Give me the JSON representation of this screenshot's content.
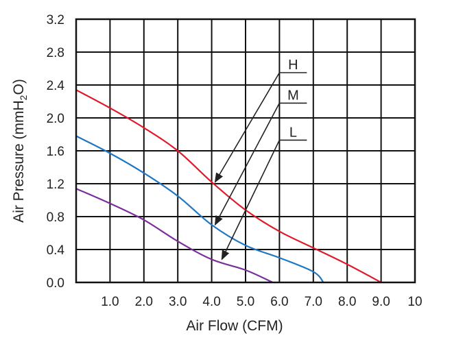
{
  "chart_data": {
    "type": "line",
    "xlabel": "Air Flow (CFM)",
    "ylabel_prefix": "Air Pressure (mmH",
    "ylabel_sub": "2",
    "ylabel_suffix": "O)",
    "xlim": [
      0,
      10
    ],
    "ylim": [
      0,
      3.2
    ],
    "x_tick_labels": [
      "1.0",
      "2.0",
      "3.0",
      "4.0",
      "5.0",
      "6.0",
      "7.0",
      "8.0",
      "9.0",
      "10"
    ],
    "y_tick_labels": [
      "0.0",
      "0.4",
      "0.8",
      "1.2",
      "1.6",
      "2.0",
      "2.4",
      "2.8",
      "3.2"
    ],
    "grid": true,
    "series": [
      {
        "name": "H",
        "color": "#e0192b",
        "points": [
          [
            0,
            2.34
          ],
          [
            1,
            2.12
          ],
          [
            2,
            1.88
          ],
          [
            3,
            1.6
          ],
          [
            4,
            1.22
          ],
          [
            5,
            0.88
          ],
          [
            6,
            0.62
          ],
          [
            7,
            0.42
          ],
          [
            8,
            0.22
          ],
          [
            9,
            0.0
          ]
        ]
      },
      {
        "name": "M",
        "color": "#1f77c4",
        "points": [
          [
            0,
            1.78
          ],
          [
            1,
            1.57
          ],
          [
            2,
            1.33
          ],
          [
            3,
            1.05
          ],
          [
            4,
            0.7
          ],
          [
            5,
            0.45
          ],
          [
            6,
            0.3
          ],
          [
            7,
            0.13
          ],
          [
            7.3,
            0.0
          ]
        ]
      },
      {
        "name": "L",
        "color": "#7b2d9a",
        "points": [
          [
            0,
            1.14
          ],
          [
            1,
            0.96
          ],
          [
            2,
            0.76
          ],
          [
            3,
            0.5
          ],
          [
            4,
            0.28
          ],
          [
            5,
            0.15
          ],
          [
            5.8,
            0.0
          ]
        ]
      }
    ],
    "annotations": [
      {
        "label": "H",
        "target": [
          4.1,
          1.22
        ],
        "from": [
          6.0,
          2.55
        ]
      },
      {
        "label": "M",
        "target": [
          4.1,
          0.7
        ],
        "from": [
          6.0,
          2.18
        ]
      },
      {
        "label": "L",
        "target": [
          4.3,
          0.28
        ],
        "from": [
          6.0,
          1.73
        ]
      }
    ]
  }
}
